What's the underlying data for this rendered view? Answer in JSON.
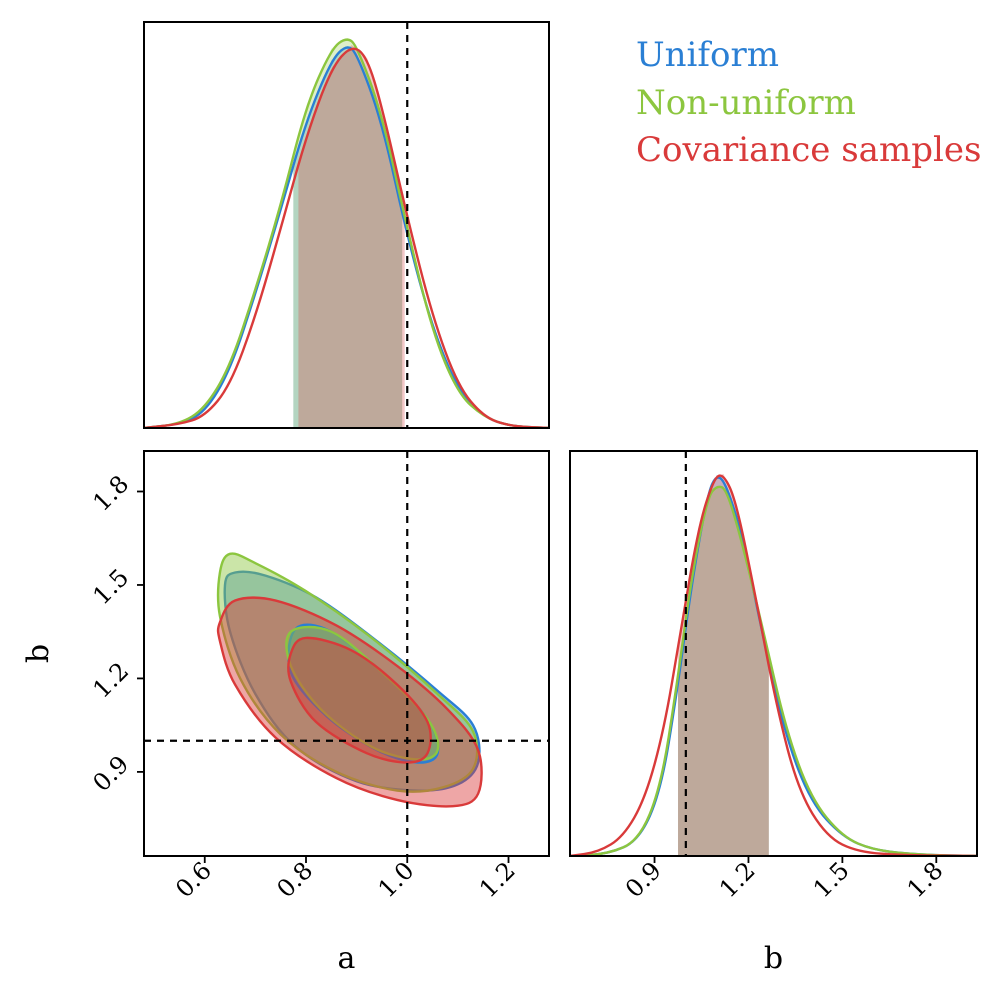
{
  "legend": [
    {
      "label": "Uniform",
      "color": "#2a7fd4"
    },
    {
      "label": "Non-uniform",
      "color": "#8cc63f"
    },
    {
      "label": "Covariance samples",
      "color": "#d93a3a"
    }
  ],
  "chart_data": [
    {
      "type": "area",
      "panel": "marginal-a",
      "xlim": [
        0.48,
        1.28
      ],
      "truth_x": 1.0,
      "yticks_shown": false,
      "series": [
        {
          "name": "Uniform",
          "color": "#2a7fd4",
          "x": [
            0.48,
            0.55,
            0.6,
            0.65,
            0.7,
            0.75,
            0.8,
            0.85,
            0.88,
            0.9,
            0.95,
            1.0,
            1.05,
            1.1,
            1.15,
            1.2,
            1.28
          ],
          "y": [
            0.0,
            0.01,
            0.04,
            0.15,
            0.35,
            0.57,
            0.8,
            0.96,
            1.0,
            0.98,
            0.8,
            0.5,
            0.26,
            0.1,
            0.03,
            0.005,
            0.0
          ],
          "band": [
            0.775,
            0.99
          ]
        },
        {
          "name": "Non-uniform",
          "color": "#8cc63f",
          "x": [
            0.48,
            0.55,
            0.6,
            0.65,
            0.7,
            0.75,
            0.8,
            0.85,
            0.88,
            0.9,
            0.95,
            1.0,
            1.05,
            1.1,
            1.15,
            1.2,
            1.28
          ],
          "y": [
            0.0,
            0.01,
            0.05,
            0.16,
            0.36,
            0.58,
            0.84,
            0.99,
            1.02,
            1.0,
            0.82,
            0.52,
            0.25,
            0.09,
            0.03,
            0.005,
            0.0
          ],
          "band": [
            0.775,
            0.99
          ]
        },
        {
          "name": "Covariance samples",
          "color": "#d93a3a",
          "x": [
            0.48,
            0.55,
            0.6,
            0.65,
            0.7,
            0.75,
            0.8,
            0.85,
            0.89,
            0.92,
            0.95,
            1.0,
            1.05,
            1.1,
            1.15,
            1.2,
            1.28
          ],
          "y": [
            0.0,
            0.01,
            0.03,
            0.11,
            0.29,
            0.52,
            0.76,
            0.94,
            1.0,
            0.97,
            0.84,
            0.55,
            0.29,
            0.11,
            0.03,
            0.005,
            0.0
          ],
          "band": [
            0.785,
            0.995
          ]
        }
      ]
    },
    {
      "type": "contour",
      "panel": "joint-a-b",
      "xlabel": "a",
      "ylabel": "b",
      "xlim": [
        0.48,
        1.28
      ],
      "ylim": [
        0.63,
        1.93
      ],
      "xticks": [
        0.6,
        0.8,
        1.0,
        1.2
      ],
      "yticks": [
        0.9,
        1.2,
        1.5,
        1.8
      ],
      "truth": {
        "a": 1.0,
        "b": 1.0
      },
      "series": [
        {
          "name": "Uniform",
          "color": "#2a7fd4",
          "outer": [
            [
              0.64,
              1.5
            ],
            [
              0.66,
              1.54
            ],
            [
              0.72,
              1.53
            ],
            [
              0.82,
              1.46
            ],
            [
              0.94,
              1.32
            ],
            [
              1.06,
              1.16
            ],
            [
              1.13,
              1.05
            ],
            [
              1.14,
              0.93
            ],
            [
              1.1,
              0.86
            ],
            [
              1.02,
              0.84
            ],
            [
              0.9,
              0.87
            ],
            [
              0.78,
              0.98
            ],
            [
              0.7,
              1.15
            ],
            [
              0.65,
              1.35
            ],
            [
              0.64,
              1.5
            ]
          ],
          "inner": [
            [
              0.78,
              1.36
            ],
            [
              0.85,
              1.35
            ],
            [
              0.95,
              1.22
            ],
            [
              1.04,
              1.07
            ],
            [
              1.06,
              0.96
            ],
            [
              1.02,
              0.93
            ],
            [
              0.94,
              0.97
            ],
            [
              0.84,
              1.08
            ],
            [
              0.77,
              1.22
            ],
            [
              0.78,
              1.36
            ]
          ]
        },
        {
          "name": "Non-uniform",
          "color": "#8cc63f",
          "outer": [
            [
              0.63,
              1.54
            ],
            [
              0.65,
              1.6
            ],
            [
              0.7,
              1.57
            ],
            [
              0.8,
              1.48
            ],
            [
              0.93,
              1.33
            ],
            [
              1.06,
              1.15
            ],
            [
              1.13,
              1.03
            ],
            [
              1.13,
              0.91
            ],
            [
              1.07,
              0.85
            ],
            [
              0.98,
              0.84
            ],
            [
              0.86,
              0.9
            ],
            [
              0.75,
              1.02
            ],
            [
              0.67,
              1.2
            ],
            [
              0.63,
              1.4
            ],
            [
              0.63,
              1.54
            ]
          ],
          "inner": [
            [
              0.77,
              1.35
            ],
            [
              0.85,
              1.35
            ],
            [
              0.95,
              1.22
            ],
            [
              1.04,
              1.07
            ],
            [
              1.06,
              0.97
            ],
            [
              1.02,
              0.94
            ],
            [
              0.93,
              0.98
            ],
            [
              0.83,
              1.1
            ],
            [
              0.77,
              1.24
            ],
            [
              0.77,
              1.35
            ]
          ]
        },
        {
          "name": "Covariance samples",
          "color": "#d93a3a",
          "outer": [
            [
              0.63,
              1.38
            ],
            [
              0.66,
              1.45
            ],
            [
              0.74,
              1.45
            ],
            [
              0.86,
              1.37
            ],
            [
              0.98,
              1.24
            ],
            [
              1.08,
              1.1
            ],
            [
              1.14,
              0.97
            ],
            [
              1.14,
              0.83
            ],
            [
              1.09,
              0.79
            ],
            [
              0.98,
              0.81
            ],
            [
              0.86,
              0.88
            ],
            [
              0.74,
              1.01
            ],
            [
              0.66,
              1.18
            ],
            [
              0.63,
              1.32
            ],
            [
              0.63,
              1.38
            ]
          ],
          "inner": [
            [
              0.77,
              1.28
            ],
            [
              0.8,
              1.33
            ],
            [
              0.89,
              1.29
            ],
            [
              0.98,
              1.18
            ],
            [
              1.04,
              1.06
            ],
            [
              1.04,
              0.96
            ],
            [
              1.0,
              0.93
            ],
            [
              0.92,
              0.96
            ],
            [
              0.82,
              1.06
            ],
            [
              0.77,
              1.19
            ],
            [
              0.77,
              1.28
            ]
          ]
        }
      ]
    },
    {
      "type": "area",
      "panel": "marginal-b",
      "xlabel": "b",
      "xlim": [
        0.63,
        1.93
      ],
      "xticks": [
        0.9,
        1.2,
        1.5,
        1.8
      ],
      "truth_x": 1.0,
      "yticks_shown": false,
      "series": [
        {
          "name": "Uniform",
          "color": "#2a7fd4",
          "x": [
            0.63,
            0.75,
            0.85,
            0.92,
            0.97,
            1.02,
            1.07,
            1.1,
            1.13,
            1.18,
            1.25,
            1.32,
            1.4,
            1.5,
            1.6,
            1.75,
            1.93
          ],
          "y": [
            0.0,
            0.005,
            0.04,
            0.17,
            0.42,
            0.72,
            0.95,
            1.0,
            0.97,
            0.84,
            0.56,
            0.31,
            0.14,
            0.05,
            0.015,
            0.003,
            0.0
          ],
          "band": [
            0.975,
            1.265
          ]
        },
        {
          "name": "Non-uniform",
          "color": "#8cc63f",
          "x": [
            0.63,
            0.75,
            0.85,
            0.92,
            0.97,
            1.02,
            1.07,
            1.1,
            1.13,
            1.18,
            1.25,
            1.32,
            1.4,
            1.5,
            1.6,
            1.75,
            1.93
          ],
          "y": [
            0.0,
            0.005,
            0.04,
            0.18,
            0.44,
            0.74,
            0.94,
            0.97,
            0.96,
            0.82,
            0.58,
            0.33,
            0.15,
            0.05,
            0.015,
            0.003,
            0.0
          ],
          "band": [
            0.975,
            1.265
          ]
        },
        {
          "name": "Covariance samples",
          "color": "#d93a3a",
          "x": [
            0.63,
            0.72,
            0.8,
            0.87,
            0.93,
            0.98,
            1.04,
            1.09,
            1.12,
            1.16,
            1.22,
            1.29,
            1.36,
            1.45,
            1.55,
            1.7,
            1.93
          ],
          "y": [
            0.0,
            0.01,
            0.05,
            0.15,
            0.33,
            0.57,
            0.86,
            0.99,
            1.0,
            0.93,
            0.69,
            0.39,
            0.17,
            0.05,
            0.01,
            0.002,
            0.0
          ],
          "band": [
            0.975,
            1.265
          ]
        }
      ]
    }
  ]
}
